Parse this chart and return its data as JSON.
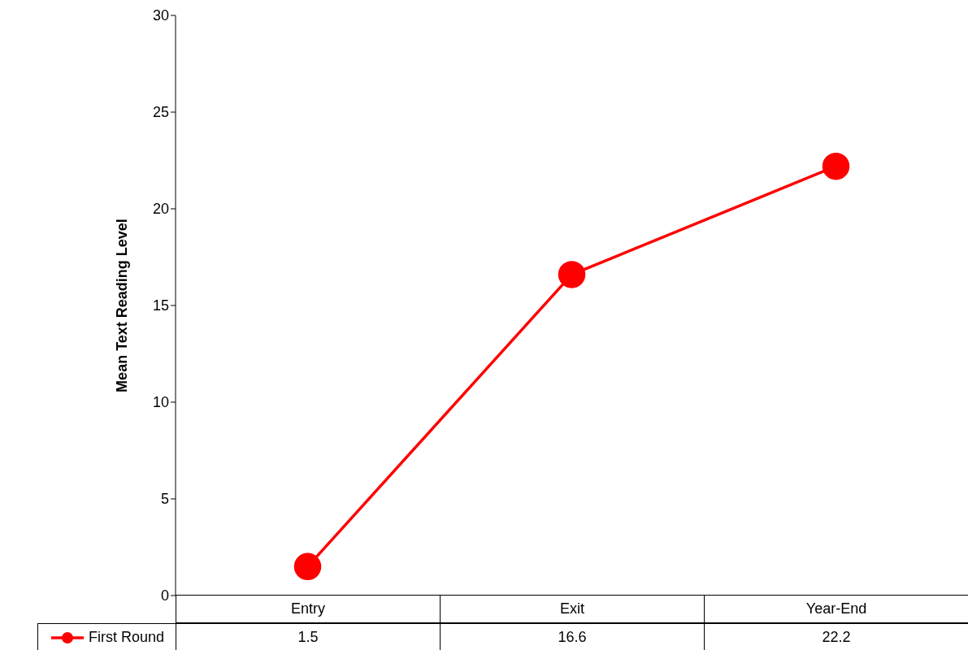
{
  "chart_data": {
    "type": "line",
    "ylabel": "Mean Text Reading Level",
    "categories": [
      "Entry",
      "Exit",
      "Year-End"
    ],
    "series": [
      {
        "name": "First Round",
        "color": "#ff0000",
        "values": [
          1.5,
          16.6,
          22.2
        ]
      }
    ],
    "ylim": [
      0,
      30
    ],
    "yticks": [
      0,
      5,
      10,
      15,
      20,
      25,
      30
    ],
    "legend": "bottom",
    "marker": "circle",
    "line_style": "solid",
    "data_labels": true
  }
}
